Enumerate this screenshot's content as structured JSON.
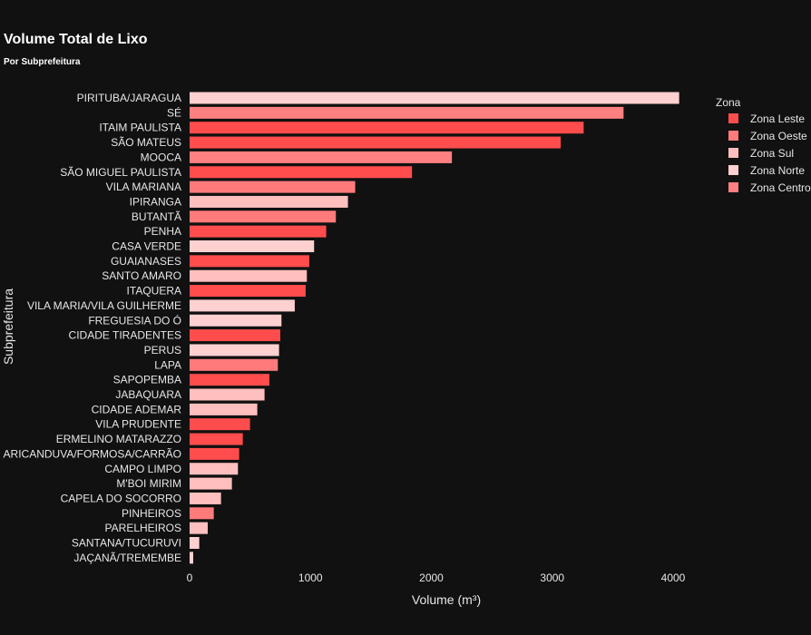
{
  "chart_data": {
    "type": "bar",
    "orientation": "horizontal",
    "title": "Volume Total de Lixo",
    "subtitle": "Por Subprefeitura",
    "xlabel": "Volume (m³)",
    "ylabel": "Subprefeitura",
    "xlim": [
      0,
      4200
    ],
    "xticks": [
      0,
      1000,
      2000,
      3000,
      4000
    ],
    "grid": false,
    "legend": {
      "title": "Zona",
      "position": "top-right",
      "entries": [
        {
          "name": "Zona Leste",
          "color": "#ff4d4d"
        },
        {
          "name": "Zona Oeste",
          "color": "#ff7b7b"
        },
        {
          "name": "Zona Sul",
          "color": "#ffbfbf"
        },
        {
          "name": "Zona Norte",
          "color": "#ffd0d0"
        },
        {
          "name": "Zona Centro",
          "color": "#ff8080"
        }
      ]
    },
    "bars": [
      {
        "category": "PIRITUBA/JARAGUA",
        "value": 4050,
        "zone": "Zona Norte"
      },
      {
        "category": "SÉ",
        "value": 3590,
        "zone": "Zona Centro"
      },
      {
        "category": "ITAIM PAULISTA",
        "value": 3260,
        "zone": "Zona Leste"
      },
      {
        "category": "SÃO MATEUS",
        "value": 3070,
        "zone": "Zona Leste"
      },
      {
        "category": "MOOCA",
        "value": 2170,
        "zone": "Zona Centro"
      },
      {
        "category": "SÃO MIGUEL PAULISTA",
        "value": 1840,
        "zone": "Zona Leste"
      },
      {
        "category": "VILA MARIANA",
        "value": 1370,
        "zone": "Zona Oeste"
      },
      {
        "category": "IPIRANGA",
        "value": 1310,
        "zone": "Zona Sul"
      },
      {
        "category": "BUTANTÃ",
        "value": 1210,
        "zone": "Zona Oeste"
      },
      {
        "category": "PENHA",
        "value": 1130,
        "zone": "Zona Leste"
      },
      {
        "category": "CASA VERDE",
        "value": 1030,
        "zone": "Zona Norte"
      },
      {
        "category": "GUAIANASES",
        "value": 990,
        "zone": "Zona Leste"
      },
      {
        "category": "SANTO AMARO",
        "value": 970,
        "zone": "Zona Sul"
      },
      {
        "category": "ITAQUERA",
        "value": 960,
        "zone": "Zona Leste"
      },
      {
        "category": "VILA MARIA/VILA GUILHERME",
        "value": 870,
        "zone": "Zona Norte"
      },
      {
        "category": "FREGUESIA DO Ó",
        "value": 760,
        "zone": "Zona Norte"
      },
      {
        "category": "CIDADE TIRADENTES",
        "value": 750,
        "zone": "Zona Leste"
      },
      {
        "category": "PERUS",
        "value": 740,
        "zone": "Zona Norte"
      },
      {
        "category": "LAPA",
        "value": 730,
        "zone": "Zona Oeste"
      },
      {
        "category": "SAPOPEMBA",
        "value": 660,
        "zone": "Zona Leste"
      },
      {
        "category": "JABAQUARA",
        "value": 620,
        "zone": "Zona Sul"
      },
      {
        "category": "CIDADE ADEMAR",
        "value": 560,
        "zone": "Zona Sul"
      },
      {
        "category": "VILA PRUDENTE",
        "value": 500,
        "zone": "Zona Leste"
      },
      {
        "category": "ERMELINO MATARAZZO",
        "value": 440,
        "zone": "Zona Leste"
      },
      {
        "category": "ARICANDUVA/FORMOSA/CARRÃO",
        "value": 410,
        "zone": "Zona Leste"
      },
      {
        "category": "CAMPO LIMPO",
        "value": 400,
        "zone": "Zona Sul"
      },
      {
        "category": "M'BOI MIRIM",
        "value": 350,
        "zone": "Zona Sul"
      },
      {
        "category": "CAPELA DO SOCORRO",
        "value": 260,
        "zone": "Zona Sul"
      },
      {
        "category": "PINHEIROS",
        "value": 200,
        "zone": "Zona Oeste"
      },
      {
        "category": "PARELHEIROS",
        "value": 150,
        "zone": "Zona Sul"
      },
      {
        "category": "SANTANA/TUCURUVI",
        "value": 80,
        "zone": "Zona Norte"
      },
      {
        "category": "JAÇANÃ/TREMEMBE",
        "value": 30,
        "zone": "Zona Norte"
      }
    ]
  }
}
